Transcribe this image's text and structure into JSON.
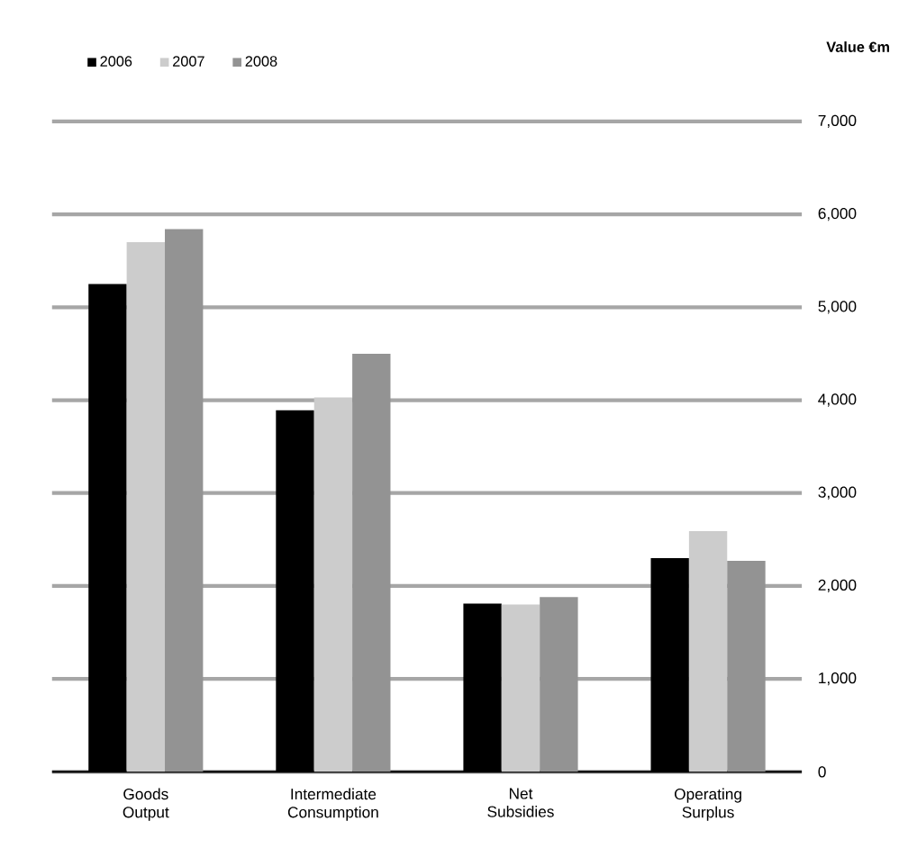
{
  "chart_data": {
    "type": "bar",
    "ylabel": "Value €m",
    "categories": [
      "Goods Output",
      "Intermediate Consumption",
      "Net Subsidies",
      "Operating Surplus"
    ],
    "series": [
      {
        "name": "2006",
        "color": "#000000",
        "values": [
          5250,
          3890,
          1810,
          2300
        ]
      },
      {
        "name": "2007",
        "color": "#cccccc",
        "values": [
          5700,
          4030,
          1800,
          2590
        ]
      },
      {
        "name": "2008",
        "color": "#939393",
        "values": [
          5840,
          4500,
          1880,
          2270
        ]
      }
    ],
    "ylim": [
      0,
      7000
    ],
    "yticks": [
      0,
      {
        "value": 1000,
        "label": "1,000"
      },
      {
        "value": 2000,
        "label": "2,000"
      },
      {
        "value": 3000,
        "label": "3,000"
      },
      {
        "value": 4000,
        "label": "4,000"
      },
      {
        "value": 5000,
        "label": "5,000"
      },
      {
        "value": 6000,
        "label": "6,000"
      },
      {
        "value": 7000,
        "label": "7,000"
      }
    ],
    "grid": "y",
    "legend": "top left"
  }
}
